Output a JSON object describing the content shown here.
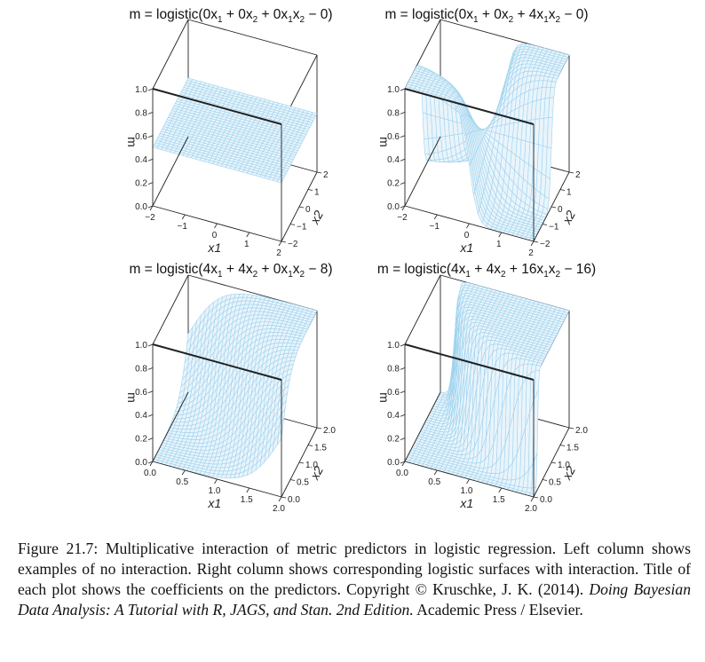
{
  "chart_data": [
    {
      "type": "surface",
      "title_html": "m = logistic(0x<sub>1</sub> + 0x<sub>2</sub> + 0x<sub>1</sub>x<sub>2</sub> − 0)",
      "coef": {
        "b1": 0,
        "b2": 0,
        "b12": 0,
        "b0": 0
      },
      "xlabel": "x1",
      "ylabel": "x2",
      "zlabel": "m",
      "xlim": [
        -2,
        2
      ],
      "ylim": [
        -2,
        2
      ],
      "zlim": [
        0,
        1
      ],
      "xticks": [
        "−2",
        "−1",
        "0",
        "1",
        "2"
      ],
      "yticks": [
        "−2",
        "−1",
        "0",
        "1",
        "2"
      ],
      "zticks": [
        "0.0",
        "0.2",
        "0.4",
        "0.6",
        "0.8",
        "1.0"
      ]
    },
    {
      "type": "surface",
      "title_html": "m = logistic(0x<sub>1</sub> + 0x<sub>2</sub> + 4x<sub>1</sub>x<sub>2</sub> − 0)",
      "coef": {
        "b1": 0,
        "b2": 0,
        "b12": 4,
        "b0": 0
      },
      "xlabel": "x1",
      "ylabel": "x2",
      "zlabel": "m",
      "xlim": [
        -2,
        2
      ],
      "ylim": [
        -2,
        2
      ],
      "zlim": [
        0,
        1
      ],
      "xticks": [
        "−2",
        "−1",
        "0",
        "1",
        "2"
      ],
      "yticks": [
        "−2",
        "−1",
        "0",
        "1",
        "2"
      ],
      "zticks": [
        "0.0",
        "0.2",
        "0.4",
        "0.6",
        "0.8",
        "1.0"
      ]
    },
    {
      "type": "surface",
      "title_html": "m = logistic(4x<sub>1</sub> + 4x<sub>2</sub> + 0x<sub>1</sub>x<sub>2</sub> − 8)",
      "coef": {
        "b1": 4,
        "b2": 4,
        "b12": 0,
        "b0": 8
      },
      "xlabel": "x1",
      "ylabel": "x2",
      "zlabel": "m",
      "xlim": [
        0,
        2
      ],
      "ylim": [
        0,
        2
      ],
      "zlim": [
        0,
        1
      ],
      "xticks": [
        "0.0",
        "0.5",
        "1.0",
        "1.5",
        "2.0"
      ],
      "yticks": [
        "0.0",
        "0.5",
        "1.0",
        "1.5",
        "2.0"
      ],
      "zticks": [
        "0.0",
        "0.2",
        "0.4",
        "0.6",
        "0.8",
        "1.0"
      ]
    },
    {
      "type": "surface",
      "title_html": "m = logistic(4x<sub>1</sub> + 4x<sub>2</sub> + 16x<sub>1</sub>x<sub>2</sub> − 16)",
      "coef": {
        "b1": 4,
        "b2": 4,
        "b12": 16,
        "b0": 16
      },
      "xlabel": "x1",
      "ylabel": "x2",
      "zlabel": "m",
      "xlim": [
        0,
        2
      ],
      "ylim": [
        0,
        2
      ],
      "zlim": [
        0,
        1
      ],
      "xticks": [
        "0.0",
        "0.5",
        "1.0",
        "1.5",
        "2.0"
      ],
      "yticks": [
        "0.0",
        "0.5",
        "1.0",
        "1.5",
        "2.0"
      ],
      "zticks": [
        "0.0",
        "0.2",
        "0.4",
        "0.6",
        "0.8",
        "1.0"
      ]
    }
  ],
  "colors": {
    "mesh": "#9fd3ee",
    "fill": "#e9f4fb",
    "box": "#222222"
  },
  "caption": {
    "label": "Figure 21.7:",
    "text": "Multiplicative interaction of metric predictors in logistic regression. Left column shows examples of no interaction. Right column shows corresponding logistic surfaces with interaction. Title of each plot shows the coefficients on the predictors. Copyright © Kruschke, J. K. (2014).",
    "book_title": "Doing Bayesian Data Analysis: A Tutorial with R, JAGS, and Stan. 2nd Edition.",
    "publisher": "Academic Press / Elsevier."
  }
}
